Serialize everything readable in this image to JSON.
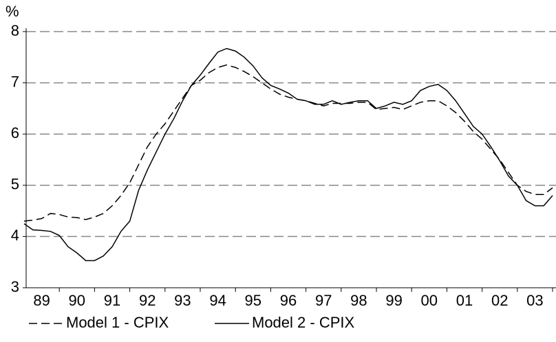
{
  "chart_data": {
    "type": "line",
    "y_label": "%",
    "categories": [
      null,
      null,
      "89",
      null,
      null,
      null,
      "90",
      null,
      null,
      null,
      "91",
      null,
      null,
      null,
      "92",
      null,
      null,
      null,
      "93",
      null,
      null,
      null,
      "94",
      null,
      null,
      null,
      "95",
      null,
      null,
      null,
      "96",
      null,
      null,
      null,
      "97",
      null,
      null,
      null,
      "98",
      null,
      null,
      null,
      "99",
      null,
      null,
      null,
      "00",
      null,
      null,
      null,
      "01",
      null,
      null,
      null,
      "02",
      null,
      null,
      null,
      "03",
      null,
      null
    ],
    "series": [
      {
        "name": "Model 1 - CPIX",
        "color": "#000000",
        "dash": true,
        "values": [
          4.3,
          4.32,
          4.35,
          4.45,
          4.43,
          4.38,
          4.37,
          4.33,
          4.38,
          4.45,
          4.6,
          4.8,
          5.05,
          5.4,
          5.75,
          6.0,
          6.2,
          6.45,
          6.7,
          6.95,
          7.05,
          7.2,
          7.3,
          7.35,
          7.3,
          7.22,
          7.12,
          7.0,
          6.88,
          6.78,
          6.72,
          6.68,
          6.65,
          6.6,
          6.55,
          6.6,
          6.6,
          6.6,
          6.62,
          6.62,
          6.48,
          6.5,
          6.52,
          6.48,
          6.55,
          6.62,
          6.65,
          6.65,
          6.55,
          6.42,
          6.25,
          6.05,
          5.9,
          5.7,
          5.5,
          5.25,
          5.0,
          4.88,
          4.82,
          4.82,
          4.95
        ]
      },
      {
        "name": "Model 2 - CPIX",
        "color": "#000000",
        "dash": false,
        "values": [
          4.25,
          4.13,
          4.12,
          4.1,
          4.02,
          3.8,
          3.68,
          3.53,
          3.53,
          3.62,
          3.8,
          4.1,
          4.3,
          4.9,
          5.3,
          5.65,
          6.0,
          6.3,
          6.65,
          6.95,
          7.15,
          7.38,
          7.6,
          7.67,
          7.62,
          7.5,
          7.33,
          7.1,
          6.95,
          6.88,
          6.8,
          6.68,
          6.65,
          6.58,
          6.58,
          6.65,
          6.58,
          6.62,
          6.65,
          6.65,
          6.5,
          6.55,
          6.62,
          6.58,
          6.65,
          6.85,
          6.93,
          6.97,
          6.85,
          6.65,
          6.4,
          6.15,
          6.0,
          5.75,
          5.48,
          5.18,
          5.0,
          4.7,
          4.6,
          4.6,
          4.8
        ]
      }
    ],
    "ylim": [
      3,
      8
    ],
    "yticks": [
      3,
      4,
      5,
      6,
      7,
      8
    ],
    "grid": true
  }
}
